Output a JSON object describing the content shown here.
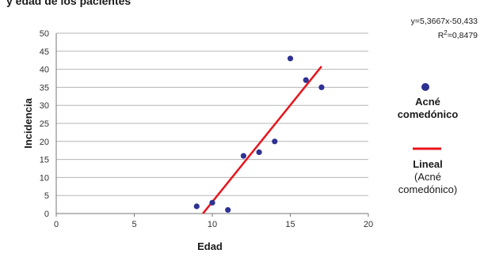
{
  "chart_data": {
    "type": "scatter",
    "title": "y edad de los pacientes",
    "xlabel": "Edad",
    "ylabel": "Incidencia",
    "xlim": [
      0,
      20
    ],
    "ylim": [
      0,
      50
    ],
    "x_ticks": [
      "0",
      "5",
      "10",
      "15",
      "20"
    ],
    "y_ticks": [
      "0",
      "5",
      "10",
      "15",
      "20",
      "25",
      "30",
      "35",
      "40",
      "45",
      "50"
    ],
    "grid": "horizontal",
    "legend_position": "right",
    "series": [
      {
        "name": "Acné comedónico",
        "color": "#2e3192",
        "points": [
          {
            "x": 9,
            "y": 2
          },
          {
            "x": 10,
            "y": 3
          },
          {
            "x": 11,
            "y": 1
          },
          {
            "x": 12,
            "y": 16
          },
          {
            "x": 13,
            "y": 17
          },
          {
            "x": 14,
            "y": 20
          },
          {
            "x": 15,
            "y": 43
          },
          {
            "x": 16,
            "y": 37
          },
          {
            "x": 17,
            "y": 35
          }
        ]
      }
    ],
    "trendline": {
      "slope": 5.3667,
      "intercept": -50.433,
      "x_start": 9.4,
      "x_end": 17,
      "color": "#e8141b"
    },
    "equation_text": "y=5,3667x-50,433",
    "r2_label": "R",
    "r2_sup": "2",
    "r2_value": "=0,8479",
    "legend": {
      "scatter_label_line1": "Acné",
      "scatter_label_line2": "comedónico",
      "trend_label_line1": "Lineal",
      "trend_label_line2": "(Acné",
      "trend_label_line3": "comedónico)"
    }
  }
}
